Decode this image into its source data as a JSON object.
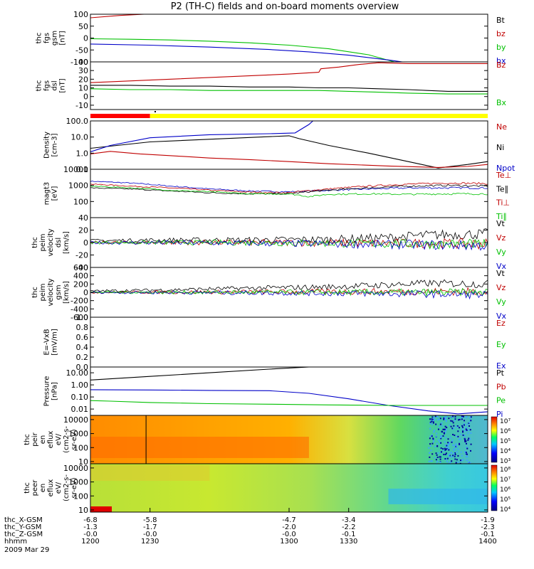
{
  "title": "P2 (TH-C) fields and on-board moments overview",
  "colors": {
    "black": "#000000",
    "red": "#c00000",
    "green": "#00c000",
    "blue": "#0000c8",
    "yellow": "#ffff00",
    "bar_red": "#ff0000"
  },
  "chart_data": {
    "type": "line",
    "x_range": [
      1200,
      1400
    ],
    "x_tick_values": [
      1200,
      1230,
      1300,
      1330,
      1400
    ],
    "tick_rows": [
      {
        "label": "thc_X-GSM",
        "values": [
          "-6.8",
          "-5.8",
          "-4.7",
          "-3.4",
          "-1.9"
        ]
      },
      {
        "label": "thc_Y-GSM",
        "values": [
          "-1.3",
          "-1.7",
          "-2.0",
          "-2.2",
          "-2.3"
        ]
      },
      {
        "label": "thc_Z-GSM",
        "values": [
          "-0.0",
          "-0.0",
          "-0.0",
          "-0.1",
          "-0.1"
        ]
      },
      {
        "label": "hhmm",
        "values": [
          "1200",
          "1230",
          "1300",
          "1330",
          "1400"
        ]
      }
    ],
    "date_label": "2009 Mar 29",
    "panels": [
      {
        "id": "fgs-gsm",
        "ylabel": [
          "thc",
          "fgs",
          "gsm",
          "[nT]"
        ],
        "ylim": [
          -100,
          100
        ],
        "yticks": [
          "100",
          "50",
          "0",
          "-50",
          "-100"
        ],
        "ytick_values": [
          100,
          50,
          0,
          -50,
          -100
        ],
        "scale": "linear",
        "legend": [
          {
            "name": "Bt",
            "color": "#000000"
          },
          {
            "name": "bz",
            "color": "#c00000"
          },
          {
            "name": "by",
            "color": "#00c000"
          },
          {
            "name": "bx",
            "color": "#0000c8"
          }
        ],
        "series": [
          {
            "name": "bz",
            "color": "#c00000",
            "x": [
              1200,
              1215,
              1227
            ],
            "y": [
              85,
              95,
              100
            ]
          },
          {
            "name": "by",
            "color": "#00c000",
            "x": [
              1200,
              1220,
              1240,
              1260,
              1280,
              1300,
              1320,
              1340,
              1353
            ],
            "y": [
              -3,
              -5,
              -8,
              -13,
              -20,
              -30,
              -45,
              -70,
              -100
            ]
          },
          {
            "name": "bx",
            "color": "#0000c8",
            "x": [
              1200,
              1230,
              1260,
              1290,
              1310,
              1330,
              1350,
              1357
            ],
            "y": [
              -25,
              -30,
              -38,
              -48,
              -58,
              -72,
              -92,
              -100
            ]
          }
        ]
      },
      {
        "id": "fgs-dsl",
        "ylabel": [
          "thc",
          "fgs",
          "dsl",
          "[nT]"
        ],
        "ylim": [
          -15,
          40
        ],
        "yticks": [
          "40",
          "30",
          "20",
          "10",
          "0",
          "-10"
        ],
        "ytick_values": [
          40,
          30,
          20,
          10,
          0,
          -10
        ],
        "scale": "linear",
        "legend": [
          {
            "name": "Bz",
            "color": "#c00000"
          },
          {
            "name": "Bx",
            "color": "#00c000"
          }
        ],
        "series": [
          {
            "name": "Bz",
            "color": "#c00000",
            "x": [
              1200,
              1230,
              1300,
              1315,
              1316,
              1325,
              1335,
              1345,
              1360,
              1380,
              1400
            ],
            "y": [
              16,
              19,
              26,
              28,
              32,
              34,
              37,
              39,
              38,
              38,
              38
            ]
          },
          {
            "name": "Bt",
            "color": "#000000",
            "x": [
              1200,
              1220,
              1240,
              1260,
              1280,
              1300,
              1315,
              1330,
              1345,
              1360,
              1380,
              1400
            ],
            "y": [
              13,
              13,
              12,
              12,
              11,
              11,
              10,
              10,
              9,
              8,
              6,
              6
            ]
          },
          {
            "name": "Bx",
            "color": "#00c000",
            "x": [
              1200,
              1220,
              1240,
              1260,
              1280,
              1300,
              1315,
              1330,
              1345,
              1360,
              1380,
              1400
            ],
            "y": [
              9,
              8,
              8,
              7,
              7,
              7,
              7,
              6,
              5,
              4,
              3,
              3
            ]
          }
        ]
      },
      {
        "id": "density",
        "ylabel": [
          "Density",
          "[cm-3]"
        ],
        "ylim": [
          0.1,
          100
        ],
        "yticks": [
          "100.0",
          "10.0",
          "1.0",
          "0.1"
        ],
        "ytick_values": [
          100,
          10,
          1,
          0.1
        ],
        "scale": "log",
        "legend": [
          {
            "name": "Ne",
            "color": "#c00000"
          },
          {
            "name": "Ni",
            "color": "#000000"
          },
          {
            "name": "Npot",
            "color": "#0000c8"
          }
        ],
        "series": [
          {
            "name": "Ni",
            "color": "#000000",
            "x": [
              1200,
              1230,
              1300,
              1305,
              1320,
              1340,
              1360,
              1375,
              1390,
              1400
            ],
            "y": [
              2,
              5,
              12,
              8,
              3,
              1,
              0.3,
              0.12,
              0.2,
              0.3
            ]
          },
          {
            "name": "Npot",
            "color": "#0000c8",
            "x": [
              1200,
              1210,
              1230,
              1260,
              1290,
              1303,
              1310,
              1312
            ],
            "y": [
              1.2,
              3,
              9,
              14,
              16,
              18,
              60,
              100
            ]
          },
          {
            "name": "Ne",
            "color": "#c00000",
            "x": [
              1200,
              1210,
              1225,
              1240,
              1260,
              1280,
              1300,
              1320,
              1350,
              1375,
              1390,
              1400
            ],
            "y": [
              0.9,
              1.3,
              0.9,
              0.7,
              0.5,
              0.4,
              0.3,
              0.22,
              0.16,
              0.13,
              0.15,
              0.2
            ]
          }
        ]
      },
      {
        "id": "temperature",
        "ylabel": [
          "magt3",
          "[eV]"
        ],
        "ylim": [
          10,
          10000
        ],
        "yticks": [
          "10000",
          "1000",
          "100"
        ],
        "ytick_values": [
          10000,
          1000,
          100
        ],
        "scale": "log",
        "legend": [
          {
            "name": "Te⊥",
            "color": "#c00000"
          },
          {
            "name": "Te∥",
            "color": "#000000"
          },
          {
            "name": "Ti⊥",
            "color": "#c00000"
          },
          {
            "name": "Ti∥",
            "color": "#00c000"
          }
        ],
        "series": [
          {
            "name": "Ti∥",
            "color": "#0000c8",
            "x": [
              1200,
              1220,
              1240,
              1260,
              1280,
              1300,
              1320,
              1340,
              1360,
              1380,
              1400
            ],
            "y": [
              1800,
              1400,
              900,
              600,
              450,
              400,
              500,
              600,
              700,
              700,
              700
            ]
          },
          {
            "name": "Te⊥",
            "color": "#c00000",
            "x": [
              1200,
              1220,
              1240,
              1260,
              1280,
              1300,
              1320,
              1340,
              1360,
              1380,
              1400
            ],
            "y": [
              1200,
              900,
              700,
              500,
              380,
              350,
              600,
              900,
              1200,
              1400,
              1300
            ]
          },
          {
            "name": "Te∥",
            "color": "#000000",
            "x": [
              1200,
              1220,
              1240,
              1260,
              1280,
              1300,
              1320,
              1340,
              1360,
              1380,
              1400
            ],
            "y": [
              700,
              600,
              450,
              350,
              300,
              300,
              500,
              700,
              900,
              1000,
              900
            ]
          },
          {
            "name": "Ti∥",
            "color": "#00c000",
            "x": [
              1200,
              1220,
              1240,
              1260,
              1280,
              1300,
              1310,
              1320,
              1340,
              1360,
              1380,
              1400
            ],
            "y": [
              900,
              700,
              500,
              400,
              300,
              300,
              200,
              280,
              300,
              280,
              300,
              300
            ]
          }
        ]
      },
      {
        "id": "velocity-dsl",
        "ylabel": [
          "thc",
          "peim",
          "velocity",
          "dsl",
          "[km/s]"
        ],
        "ylim": [
          -40,
          40
        ],
        "yticks": [
          "40",
          "20",
          "0",
          "-20",
          "-40"
        ],
        "ytick_values": [
          40,
          20,
          0,
          -20,
          -40
        ],
        "scale": "linear",
        "legend": [
          {
            "name": "Vt",
            "color": "#000000"
          },
          {
            "name": "Vz",
            "color": "#c00000"
          },
          {
            "name": "Vy",
            "color": "#00c000"
          },
          {
            "name": "Vx",
            "color": "#0000c8"
          }
        ],
        "series": [
          {
            "name": "Vt",
            "color": "#000000",
            "x": [
              1200,
              1240,
              1280,
              1320,
              1350,
              1370,
              1400
            ],
            "y": [
              3,
              4,
              4,
              5,
              8,
              12,
              14
            ]
          },
          {
            "name": "Vz",
            "color": "#c00000",
            "x": [
              1200,
              1280,
              1350,
              1400
            ],
            "y": [
              0,
              0,
              -1,
              -2
            ]
          },
          {
            "name": "Vy",
            "color": "#00c000",
            "x": [
              1200,
              1280,
              1350,
              1400
            ],
            "y": [
              0,
              0,
              -2,
              -3
            ]
          },
          {
            "name": "Vx",
            "color": "#0000c8",
            "x": [
              1200,
              1280,
              1350,
              1400
            ],
            "y": [
              0,
              -1,
              -3,
              -5
            ]
          }
        ]
      },
      {
        "id": "velocity-gsm",
        "ylabel": [
          "thc",
          "peim",
          "velocity",
          "gsm",
          "[km/s]"
        ],
        "ylim": [
          -600,
          600
        ],
        "yticks": [
          "600",
          "400",
          "200",
          "0",
          "-200",
          "-400",
          "-600"
        ],
        "ytick_values": [
          600,
          400,
          200,
          0,
          -200,
          -400,
          -600
        ],
        "scale": "linear",
        "legend": [
          {
            "name": "Vt",
            "color": "#000000"
          },
          {
            "name": "Vz",
            "color": "#c00000"
          },
          {
            "name": "Vy",
            "color": "#00c000"
          },
          {
            "name": "Vx",
            "color": "#0000c8"
          }
        ],
        "series": [
          {
            "name": "Vt",
            "color": "#000000",
            "x": [
              1200,
              1240,
              1280,
              1320,
              1350,
              1370,
              1400
            ],
            "y": [
              30,
              60,
              100,
              130,
              180,
              220,
              200
            ]
          },
          {
            "name": "Vz",
            "color": "#c00000",
            "x": [
              1200,
              1280,
              1350,
              1400
            ],
            "y": [
              0,
              10,
              20,
              20
            ]
          },
          {
            "name": "Vy",
            "color": "#00c000",
            "x": [
              1200,
              1280,
              1350,
              1400
            ],
            "y": [
              0,
              0,
              0,
              0
            ]
          },
          {
            "name": "Vx",
            "color": "#0000c8",
            "x": [
              1200,
              1280,
              1350,
              1400
            ],
            "y": [
              0,
              -10,
              -30,
              -60
            ]
          }
        ]
      },
      {
        "id": "efield",
        "ylabel": [
          "E=-VxB",
          "[mV/m]"
        ],
        "ylim": [
          0,
          1
        ],
        "yticks": [
          "1.0",
          "0.8",
          "0.6",
          "0.4",
          "0.2",
          "0.0"
        ],
        "ytick_values": [
          1.0,
          0.8,
          0.6,
          0.4,
          0.2,
          0.0
        ],
        "scale": "linear",
        "legend": [
          {
            "name": "Ez",
            "color": "#c00000"
          },
          {
            "name": "Ey",
            "color": "#00c000"
          },
          {
            "name": "Ex",
            "color": "#0000c8"
          }
        ],
        "series": []
      },
      {
        "id": "pressure",
        "ylabel": [
          "Pressure",
          "[nPa]"
        ],
        "ylim": [
          0.003,
          30
        ],
        "yticks": [
          "10.00",
          "1.00",
          "0.10",
          "0.01"
        ],
        "ytick_values": [
          10,
          1,
          0.1,
          0.01
        ],
        "scale": "log",
        "legend": [
          {
            "name": "Pt",
            "color": "#000000"
          },
          {
            "name": "Pb",
            "color": "#c00000"
          },
          {
            "name": "Pe",
            "color": "#00c000"
          },
          {
            "name": "Pi",
            "color": "#0000c8"
          }
        ],
        "series": [
          {
            "name": "Pt",
            "color": "#000000",
            "x": [
              1200,
              1230,
              1260,
              1290,
              1310
            ],
            "y": [
              2.5,
              5,
              10,
              20,
              30
            ]
          },
          {
            "name": "Pi",
            "color": "#0000c8",
            "x": [
              1200,
              1230,
              1260,
              1290,
              1310,
              1330,
              1350,
              1370,
              1385,
              1400
            ],
            "y": [
              0.4,
              0.38,
              0.35,
              0.33,
              0.2,
              0.07,
              0.02,
              0.007,
              0.004,
              0.006
            ]
          },
          {
            "name": "Pe",
            "color": "#00c000",
            "x": [
              1200,
              1210,
              1230,
              1260,
              1290,
              1320,
              1350,
              1380,
              1400
            ],
            "y": [
              0.05,
              0.045,
              0.035,
              0.028,
              0.025,
              0.022,
              0.02,
              0.02,
              0.02
            ]
          }
        ]
      },
      {
        "id": "ion-spectrogram",
        "ylabel": [
          "thc",
          "peir",
          "en",
          "eflux",
          "eV/",
          "(cm2-s-",
          "sr-eV)"
        ],
        "ylim": [
          7,
          20000
        ],
        "yticks": [
          "10000",
          "1000",
          "100",
          "10"
        ],
        "ytick_values": [
          10000,
          1000,
          100,
          10
        ],
        "scale": "log",
        "colorbar_labels": [
          "10⁷",
          "10⁶",
          "10⁵",
          "10⁴",
          "10³"
        ]
      },
      {
        "id": "electron-spectrogram",
        "ylabel": [
          "thc",
          "peer",
          "en",
          "eflux",
          "eV/",
          "(cm2-s-",
          "sr-eV)"
        ],
        "ylim": [
          7,
          20000
        ],
        "yticks": [
          "10000",
          "1000",
          "100",
          "10"
        ],
        "ytick_values": [
          10000,
          1000,
          100,
          10
        ],
        "scale": "log",
        "colorbar_labels": [
          "10⁸",
          "10⁷",
          "10⁶",
          "10⁵",
          "10⁴"
        ]
      }
    ]
  }
}
